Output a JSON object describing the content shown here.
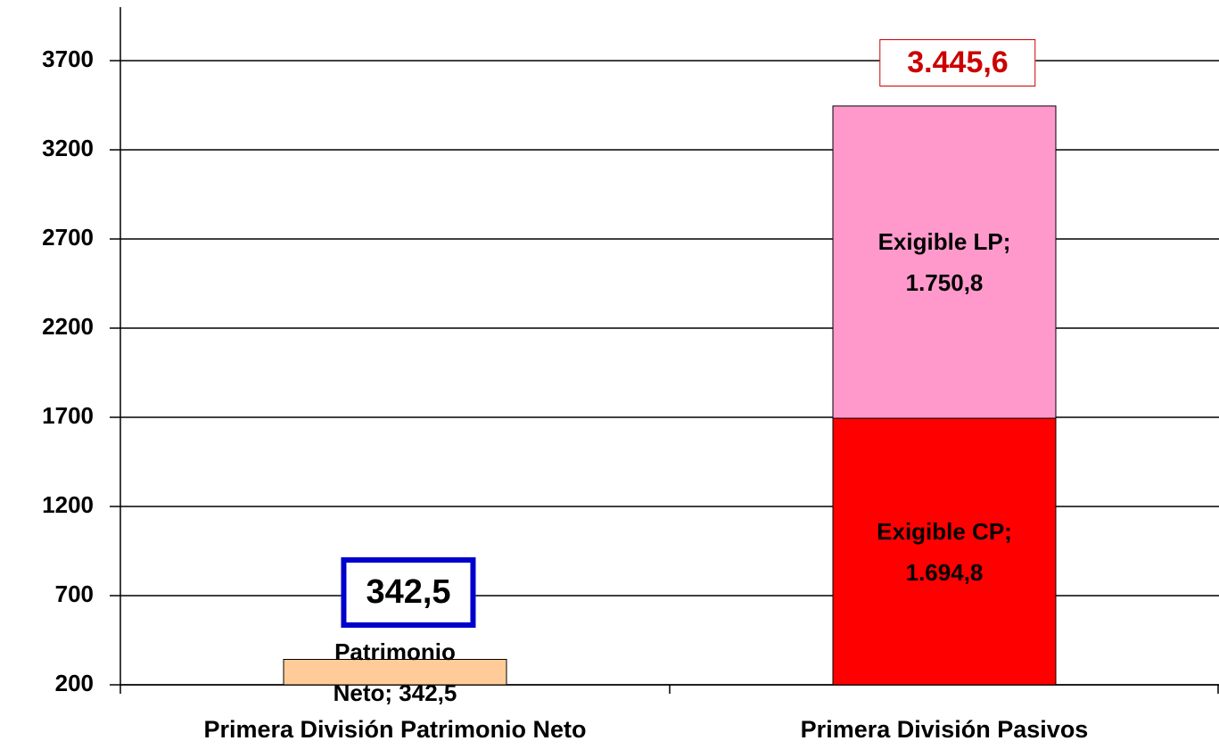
{
  "chart_data": {
    "type": "stacked_bar",
    "categories": [
      "Primera División Patrimonio Neto",
      "Primera División Pasivos"
    ],
    "series": [
      {
        "color": "#ffcc99",
        "values": [
          342.5,
          null
        ],
        "value_labels": [
          "Patrimonio Neto; 342,5",
          null
        ]
      },
      {
        "color": "#ff0000",
        "values": [
          null,
          1694.8
        ],
        "value_labels": [
          null,
          "Exigible CP; 1.694,8"
        ]
      },
      {
        "color": "#ff99cc",
        "values": [
          null,
          1750.8
        ],
        "value_labels": [
          null,
          "Exigible LP; 1.750,8"
        ]
      }
    ],
    "totals": [
      342.5,
      3445.6
    ],
    "total_labels": [
      "342,5",
      "3.445,6"
    ],
    "ylim": [
      200,
      4000
    ],
    "yticks": [
      200,
      700,
      1200,
      1700,
      2200,
      2700,
      3200,
      3700
    ],
    "grid": true
  }
}
